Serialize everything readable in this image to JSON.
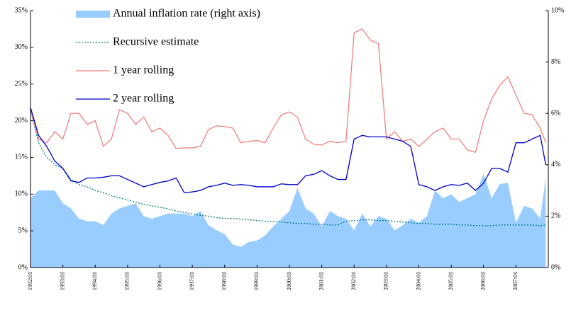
{
  "chart_data": {
    "type": "line",
    "legend": "upper left",
    "x": [
      1992,
      1992.25,
      1992.5,
      1992.75,
      1993,
      1993.25,
      1993.5,
      1993.75,
      1994,
      1994.25,
      1994.5,
      1994.75,
      1995,
      1995.25,
      1995.5,
      1995.75,
      1996,
      1996.25,
      1996.5,
      1996.75,
      1997,
      1997.25,
      1997.5,
      1997.75,
      1998,
      1998.25,
      1998.5,
      1998.75,
      1999,
      1999.25,
      1999.5,
      1999.75,
      2000,
      2000.25,
      2000.5,
      2000.75,
      2001,
      2001.25,
      2001.5,
      2001.75,
      2002,
      2002.25,
      2002.5,
      2002.75,
      2003,
      2003.25,
      2003.5,
      2003.75,
      2004,
      2004.25,
      2004.5,
      2004.75,
      2005,
      2005.25,
      2005.5,
      2005.75,
      2006,
      2006.25,
      2006.5,
      2006.75,
      2007,
      2007.25,
      2007.5,
      2007.75,
      2007.92
    ],
    "xlim": [
      1992,
      2008
    ],
    "xticks": [
      {
        "value": 1992,
        "label": "1992:01"
      },
      {
        "value": 1993,
        "label": "1993:01"
      },
      {
        "value": 1994,
        "label": "1994:01"
      },
      {
        "value": 1995,
        "label": "1995:01"
      },
      {
        "value": 1996,
        "label": "1996:01"
      },
      {
        "value": 1997,
        "label": "1997:01"
      },
      {
        "value": 1998,
        "label": "1998:01"
      },
      {
        "value": 1999,
        "label": "1999:01"
      },
      {
        "value": 2000,
        "label": "2000:01"
      },
      {
        "value": 2001,
        "label": "2001:01"
      },
      {
        "value": 2002,
        "label": "2002:01"
      },
      {
        "value": 2003,
        "label": "2003:01"
      },
      {
        "value": 2004,
        "label": "2004:01"
      },
      {
        "value": 2005,
        "label": "2005:01"
      },
      {
        "value": 2006,
        "label": "2006:01"
      },
      {
        "value": 2007,
        "label": "2007:01"
      }
    ],
    "ylim": [
      0,
      35
    ],
    "yticks": [
      {
        "value": 0,
        "label": "0%"
      },
      {
        "value": 5,
        "label": "5%"
      },
      {
        "value": 10,
        "label": "10%"
      },
      {
        "value": 15,
        "label": "15%"
      },
      {
        "value": 20,
        "label": "20%"
      },
      {
        "value": 25,
        "label": "25%"
      },
      {
        "value": 30,
        "label": "30%"
      },
      {
        "value": 35,
        "label": "35%"
      }
    ],
    "y2lim": [
      0,
      10
    ],
    "y2ticks": [
      {
        "value": 0,
        "label": "0%"
      },
      {
        "value": 2,
        "label": "2%"
      },
      {
        "value": 4,
        "label": "4%"
      },
      {
        "value": 6,
        "label": "6%"
      },
      {
        "value": 8,
        "label": "8%"
      },
      {
        "value": 10,
        "label": "10%"
      }
    ],
    "series": [
      {
        "name": "Annual inflation rate (right axis)",
        "type": "area",
        "axis": "y2",
        "color": "#99ccff",
        "values": [
          2.7,
          3.0,
          3.0,
          3.0,
          2.5,
          2.3,
          1.9,
          1.8,
          1.8,
          1.65,
          2.1,
          2.3,
          2.4,
          2.5,
          2.0,
          1.9,
          2.0,
          2.1,
          2.1,
          2.1,
          2.0,
          2.2,
          1.65,
          1.45,
          1.3,
          0.9,
          0.8,
          1.0,
          1.05,
          1.25,
          1.6,
          1.9,
          2.2,
          3.1,
          2.3,
          2.1,
          1.6,
          2.2,
          2.0,
          1.9,
          1.45,
          2.1,
          1.6,
          2.0,
          1.9,
          1.45,
          1.65,
          1.9,
          1.75,
          2.0,
          3.0,
          2.7,
          2.85,
          2.55,
          2.7,
          2.85,
          3.65,
          2.7,
          3.25,
          3.3,
          1.75,
          2.4,
          2.3,
          1.9,
          3.5
        ]
      },
      {
        "name": "Recursive estimate",
        "type": "line",
        "dash": "dotted",
        "color": "#008080",
        "values": [
          21.5,
          17,
          15,
          14,
          13.5,
          12,
          11.3,
          11,
          10.5,
          10.2,
          9.8,
          9.5,
          9.2,
          8.9,
          8.6,
          8.4,
          8.2,
          8,
          7.7,
          7.5,
          7.3,
          7.1,
          7,
          6.8,
          6.7,
          6.7,
          6.6,
          6.5,
          6.4,
          6.3,
          6.3,
          6.2,
          6.1,
          6.0,
          6.0,
          5.9,
          5.9,
          5.8,
          5.8,
          6.3,
          6.4,
          6.5,
          6.5,
          6.4,
          6.4,
          6.3,
          6.2,
          6.1,
          6.0,
          6.0,
          5.9,
          5.9,
          5.9,
          5.8,
          5.8,
          5.7,
          5.7,
          5.7,
          5.8,
          5.8,
          5.8,
          5.8,
          5.8,
          5.7,
          5.8
        ]
      },
      {
        "name": "1 year rolling",
        "type": "line",
        "color": "#f08080",
        "values": [
          21.5,
          17.5,
          17,
          18.5,
          17.5,
          21,
          21,
          19.5,
          20,
          16.5,
          17.5,
          21.5,
          21,
          19.5,
          20.5,
          18.5,
          19,
          18,
          16.2,
          16.3,
          16.3,
          16.5,
          18.8,
          19.3,
          19.2,
          19,
          17,
          17.2,
          17.3,
          17,
          19,
          20.8,
          21.2,
          20.5,
          17.5,
          16.8,
          16.7,
          17.2,
          17,
          17.2,
          32,
          32.5,
          31,
          30.5,
          17.5,
          18.5,
          17.2,
          17.5,
          16.5,
          17.5,
          18.5,
          19,
          17.5,
          17.5,
          16,
          15.7,
          20,
          23,
          24.8,
          26,
          23.5,
          21,
          20.8,
          19,
          17
        ]
      },
      {
        "name": "2 year rolling",
        "type": "line",
        "color": "#0000cc",
        "values": [
          21.8,
          18,
          16.5,
          14.5,
          13.5,
          11.8,
          11.6,
          12.2,
          12.2,
          12.3,
          12.5,
          12.5,
          12,
          11.5,
          11,
          11.3,
          11.6,
          11.8,
          12.2,
          10.2,
          10.3,
          10.5,
          11,
          11.2,
          11.5,
          11.2,
          11.3,
          11.2,
          11,
          11,
          11,
          11.4,
          11.3,
          11.3,
          12.5,
          12.7,
          13.2,
          12.5,
          12,
          12,
          17.5,
          18,
          17.8,
          17.8,
          17.8,
          17.5,
          17.2,
          16.5,
          11.3,
          11,
          10.5,
          11,
          11.3,
          11.2,
          11.5,
          10.5,
          11.5,
          13.5,
          13.5,
          13,
          17,
          17,
          17.5,
          18,
          14
        ]
      }
    ]
  }
}
